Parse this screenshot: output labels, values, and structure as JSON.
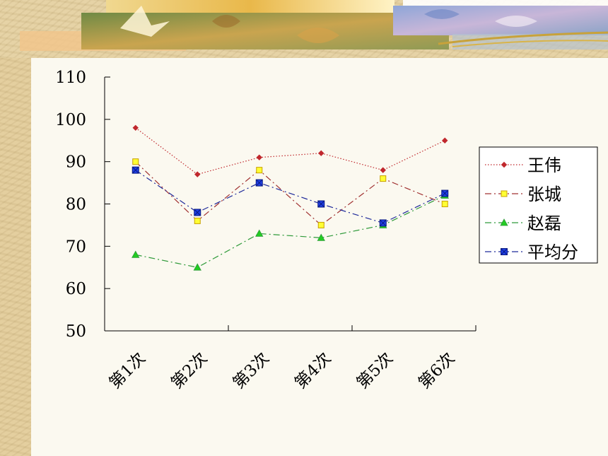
{
  "chart_data": {
    "type": "line",
    "categories": [
      "第1次",
      "第2次",
      "第3次",
      "第4次",
      "第5次",
      "第6次"
    ],
    "ylim": [
      50,
      110
    ],
    "yticks": [
      50,
      60,
      70,
      80,
      90,
      100,
      110
    ],
    "grid": false,
    "legend_position": "right",
    "series": [
      {
        "name": "王伟",
        "values": [
          98,
          87,
          91,
          92,
          88,
          95
        ],
        "color": "#c0282d",
        "marker": "diamond",
        "dash": "1.5 2.5"
      },
      {
        "name": "张城",
        "values": [
          90,
          76,
          88,
          75,
          86,
          80
        ],
        "color": "#a03030",
        "marker": "square",
        "marker_fill": "#ffff33",
        "marker_stroke": "#c8a000",
        "dash": "9 4 2 4"
      },
      {
        "name": "赵磊",
        "values": [
          68,
          65,
          73,
          72,
          75,
          82
        ],
        "color": "#2f9a3a",
        "marker": "triangle",
        "marker_fill": "#22cc22",
        "dash": "9 4 2 4"
      },
      {
        "name": "平均分",
        "values": [
          88,
          78,
          85,
          80,
          75.5,
          82.5
        ],
        "color": "#1f2a9a",
        "marker": "xsquare",
        "marker_fill": "#1f3fe6",
        "dash": "9 4 2 4"
      }
    ]
  },
  "decor": {
    "banner_icon": "autumn-leaves-banner"
  }
}
